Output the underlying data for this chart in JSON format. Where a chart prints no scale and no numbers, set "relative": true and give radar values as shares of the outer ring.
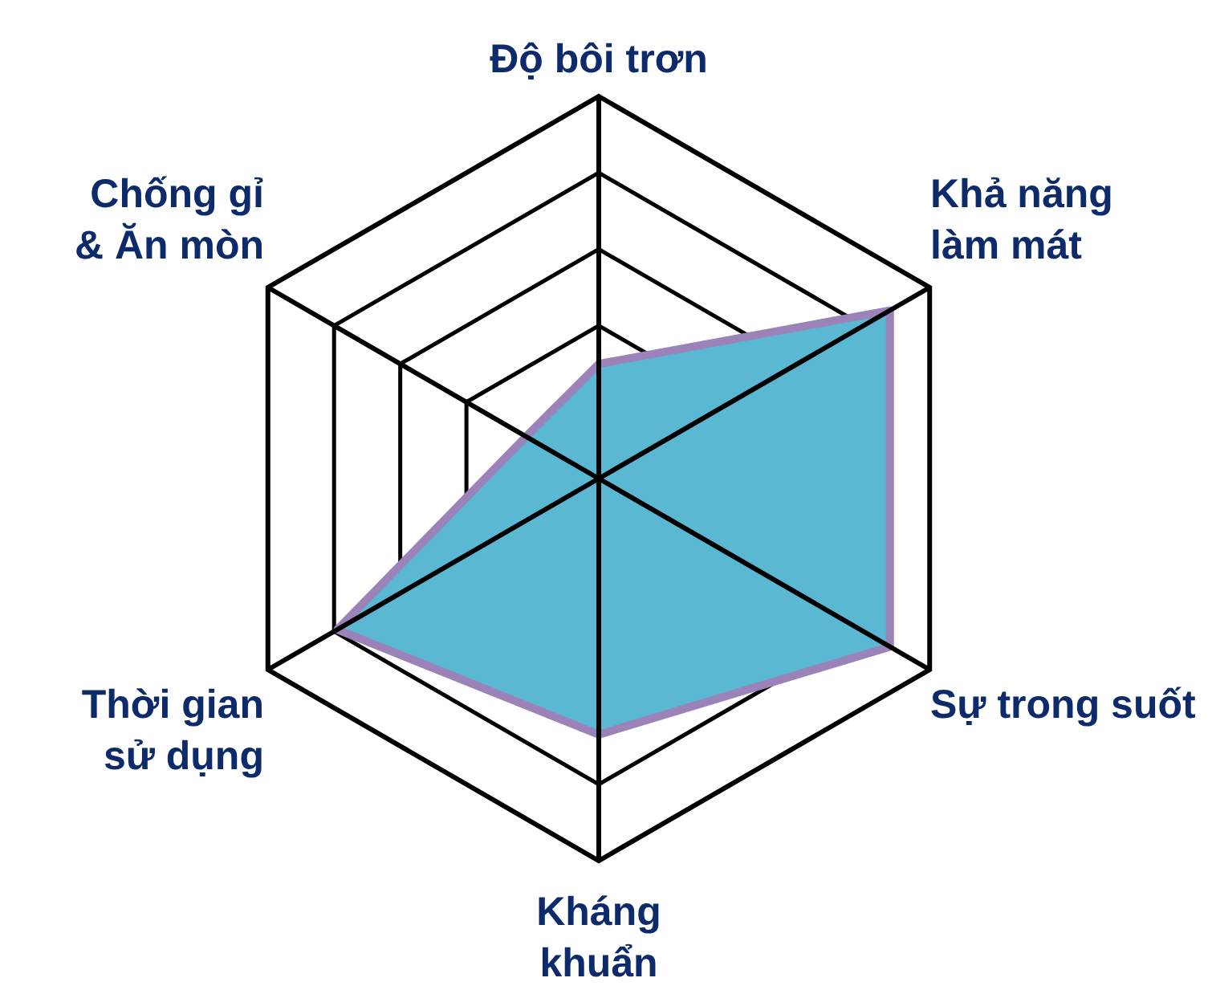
{
  "chart_data": {
    "type": "radar",
    "relative": true,
    "grid": true,
    "categories": [
      "Độ bôi trơn",
      "Khả năng\nlàm mát",
      "Sự trong suốt",
      "Kháng\nkhuẩn",
      "Thời gian\nsử dụng",
      "Chống gỉ\n& Ăn mòn"
    ],
    "series": [
      {
        "color": "#5ab8d2",
        "values": [
          0.3,
          0.88,
          0.88,
          0.67,
          0.79,
          0.22
        ]
      }
    ]
  }
}
